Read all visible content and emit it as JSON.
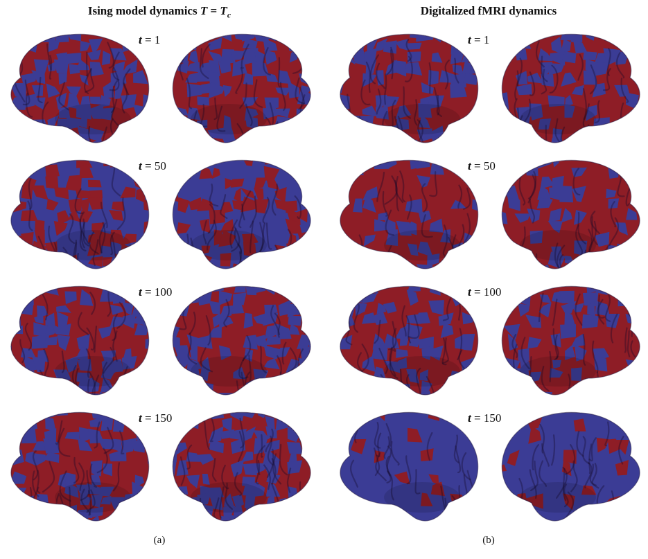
{
  "panels": [
    {
      "title_text": "Ising model dynamics ",
      "title_math_T": "T",
      "title_eq": " = ",
      "title_math_Tc": "T",
      "title_sub": "c",
      "label": "(a)",
      "rows": [
        {
          "t_var": "t",
          "t_eq": " = ",
          "t_value": "1",
          "red_fraction": 0.5
        },
        {
          "t_var": "t",
          "t_eq": " = ",
          "t_value": "50",
          "red_fraction": 0.45
        },
        {
          "t_var": "t",
          "t_eq": " = ",
          "t_value": "100",
          "red_fraction": 0.55
        },
        {
          "t_var": "t",
          "t_eq": " = ",
          "t_value": "150",
          "red_fraction": 0.5
        }
      ]
    },
    {
      "title_text": "Digitalized fMRI dynamics",
      "label": "(b)",
      "rows": [
        {
          "t_var": "t",
          "t_eq": " = ",
          "t_value": "1",
          "red_fraction": 0.55
        },
        {
          "t_var": "t",
          "t_eq": " = ",
          "t_value": "50",
          "red_fraction": 0.72
        },
        {
          "t_var": "t",
          "t_eq": " = ",
          "t_value": "100",
          "red_fraction": 0.6
        },
        {
          "t_var": "t",
          "t_eq": " = ",
          "t_value": "150",
          "red_fraction": 0.15
        }
      ]
    }
  ],
  "colors": {
    "red": "#8e1d26",
    "blue": "#3b3c95",
    "red_shade": "#6e1119",
    "blue_shade": "#2a2b78"
  }
}
